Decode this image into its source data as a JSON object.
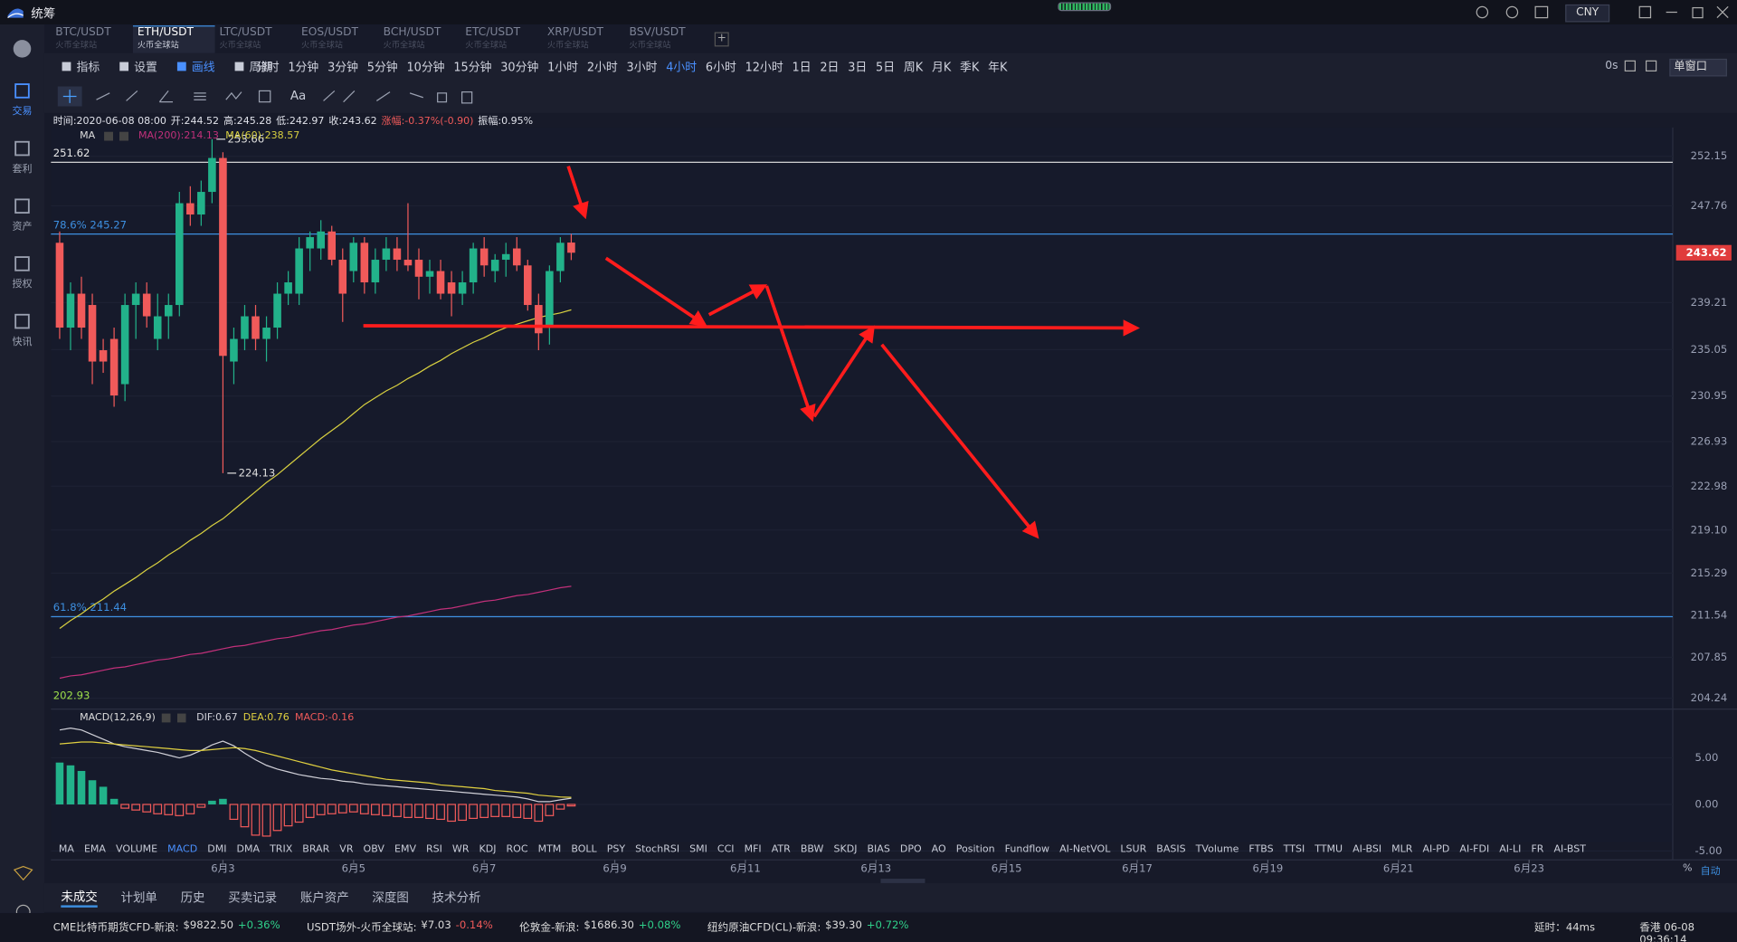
{
  "app": {
    "title": "统筹",
    "currency": "CNY"
  },
  "tabs": [
    {
      "pair": "BTC/USDT",
      "market": "火币全球站"
    },
    {
      "pair": "ETH/USDT",
      "market": "火币全球站",
      "active": true
    },
    {
      "pair": "LTC/USDT",
      "market": "火币全球站"
    },
    {
      "pair": "EOS/USDT",
      "market": "火币全球站"
    },
    {
      "pair": "BCH/USDT",
      "market": "火币全球站"
    },
    {
      "pair": "ETC/USDT",
      "market": "火币全球站"
    },
    {
      "pair": "XRP/USDT",
      "market": "火币全球站"
    },
    {
      "pair": "BSV/USDT",
      "market": "火币全球站"
    }
  ],
  "sidebar": [
    "交易",
    "套利",
    "资产",
    "授权",
    "快讯"
  ],
  "toolbar": {
    "indicator": "指标",
    "settings": "设置",
    "draw": "画线",
    "period": "周期",
    "timer": "0s",
    "window": "单窗口",
    "font": "Aa"
  },
  "periods": [
    {
      "label": "分时"
    },
    {
      "label": "1分钟"
    },
    {
      "label": "3分钟"
    },
    {
      "label": "5分钟"
    },
    {
      "label": "10分钟"
    },
    {
      "label": "15分钟"
    },
    {
      "label": "30分钟"
    },
    {
      "label": "1小时"
    },
    {
      "label": "2小时"
    },
    {
      "label": "3小时"
    },
    {
      "label": "4小时",
      "active": true
    },
    {
      "label": "6小时"
    },
    {
      "label": "12小时"
    },
    {
      "label": "1日"
    },
    {
      "label": "2日"
    },
    {
      "label": "3日"
    },
    {
      "label": "5日"
    },
    {
      "label": "周K"
    },
    {
      "label": "月K"
    },
    {
      "label": "季K"
    },
    {
      "label": "年K"
    }
  ],
  "info": [
    "时间:2020-06-08 08:00",
    "开:244.52",
    "高:245.28",
    "低:242.97",
    "收:243.62",
    "涨幅:-0.37%(-0.90)",
    "振幅:0.95%"
  ],
  "chart_data": {
    "type": "candlestick",
    "legend_title": "MA",
    "grid": true,
    "up_color": "#22b28a",
    "down_color": "#f05a5a",
    "xlim": [
      -0.8,
      148.2
    ],
    "xticks": [
      {
        "value": 15,
        "label": "6月3"
      },
      {
        "value": 27,
        "label": "6月5"
      },
      {
        "value": 39,
        "label": "6月7"
      },
      {
        "value": 51,
        "label": "6月9"
      },
      {
        "value": 63,
        "label": "6月11"
      },
      {
        "value": 75,
        "label": "6月13"
      },
      {
        "value": 87,
        "label": "6月15"
      },
      {
        "value": 99,
        "label": "6月17"
      },
      {
        "value": 111,
        "label": "6月19"
      },
      {
        "value": 123,
        "label": "6月21"
      },
      {
        "value": 135,
        "label": "6月23"
      }
    ],
    "ylim": [
      203.46,
      254.7
    ],
    "yticks": [
      252.15,
      247.76,
      239.21,
      235.05,
      230.95,
      226.93,
      222.98,
      {
        "value": 219.1,
        "label": "219.10"
      },
      215.29,
      211.54,
      207.85,
      204.24
    ],
    "ohlc": [
      [
        244.5,
        245.5,
        236,
        237
      ],
      [
        237,
        241,
        235,
        240
      ],
      [
        240,
        241.5,
        236,
        237
      ],
      [
        239,
        240,
        232,
        234
      ],
      [
        235,
        236,
        233,
        234
      ],
      [
        236,
        237,
        230,
        231
      ],
      [
        232,
        240,
        230.5,
        239
      ],
      [
        239,
        241,
        236,
        240
      ],
      [
        240,
        241,
        237,
        238
      ],
      [
        236,
        240,
        235,
        238
      ],
      [
        238,
        240,
        236,
        239
      ],
      [
        239,
        249,
        238,
        248
      ],
      [
        248,
        249.5,
        246,
        247
      ],
      [
        247,
        250,
        246,
        249
      ],
      [
        249,
        253.66,
        248,
        252
      ],
      [
        252,
        252.5,
        224.13,
        234.5
      ],
      [
        234,
        237,
        232,
        236
      ],
      [
        236,
        239,
        235,
        238
      ],
      [
        238,
        239,
        235,
        236
      ],
      [
        236,
        238,
        234,
        237
      ],
      [
        237,
        241,
        236,
        240
      ],
      [
        240,
        242,
        239,
        241
      ],
      [
        240,
        245,
        239,
        244
      ],
      [
        244,
        245.5,
        242,
        245
      ],
      [
        244,
        246.5,
        243,
        245.5
      ],
      [
        245.5,
        246,
        242.5,
        243
      ],
      [
        243,
        244,
        237.5,
        240
      ],
      [
        242,
        245,
        241,
        244.5
      ],
      [
        244.5,
        245,
        240,
        241
      ],
      [
        241,
        244,
        240,
        243
      ],
      [
        243,
        245,
        242,
        244
      ],
      [
        244,
        245,
        242,
        243
      ],
      [
        243,
        248,
        242,
        242.5
      ],
      [
        243,
        244,
        239.5,
        241.5
      ],
      [
        241.5,
        243,
        240,
        242
      ],
      [
        242,
        243,
        239.5,
        240
      ],
      [
        241,
        242,
        238,
        240
      ],
      [
        240,
        242,
        239,
        241
      ],
      [
        241,
        244.5,
        240,
        244
      ],
      [
        244,
        245,
        241.5,
        242.5
      ],
      [
        242,
        243.5,
        241,
        243
      ],
      [
        243,
        244.5,
        241.5,
        243.5
      ],
      [
        244,
        245,
        242,
        242.5
      ],
      [
        242.5,
        243,
        238.5,
        239
      ],
      [
        239,
        240,
        235,
        236.5
      ],
      [
        237,
        242.5,
        235.5,
        242
      ],
      [
        242,
        245,
        241,
        244.5
      ],
      [
        244.52,
        245.28,
        242.97,
        243.62
      ]
    ],
    "ma": [
      {
        "name": "MA(200):214.13",
        "color": "#c2307a",
        "values": [
          206.0,
          206.2,
          206.3,
          206.5,
          206.7,
          206.9,
          207.0,
          207.2,
          207.4,
          207.6,
          207.7,
          207.9,
          208.1,
          208.2,
          208.4,
          208.6,
          208.8,
          208.9,
          209.1,
          209.3,
          209.5,
          209.6,
          209.8,
          210.0,
          210.2,
          210.3,
          210.5,
          210.7,
          210.8,
          211.0,
          211.2,
          211.4,
          211.5,
          211.7,
          211.9,
          212.1,
          212.2,
          212.4,
          212.6,
          212.8,
          212.9,
          213.1,
          213.3,
          213.4,
          213.6,
          213.8,
          214.0,
          214.13
        ]
      },
      {
        "name": "MA(60):238.57",
        "color": "#d8d040",
        "values": [
          210.4,
          211.1,
          211.7,
          212.4,
          213.0,
          213.7,
          214.3,
          214.9,
          215.6,
          216.2,
          216.9,
          217.5,
          218.2,
          218.8,
          219.5,
          220.1,
          220.9,
          221.7,
          222.5,
          223.3,
          224.0,
          224.8,
          225.6,
          226.4,
          227.2,
          227.9,
          228.6,
          229.4,
          230.2,
          230.8,
          231.4,
          231.9,
          232.5,
          233.0,
          233.6,
          234.1,
          234.7,
          235.2,
          235.7,
          236.1,
          236.6,
          237.0,
          237.3,
          237.6,
          237.9,
          238.1,
          238.3,
          238.57
        ]
      }
    ],
    "levels": [
      {
        "value": 251.62,
        "label": "251.62",
        "color": "#e8e8e8"
      },
      {
        "value": 245.27,
        "label": "78.6% 245.27",
        "color": "#3d8fe0"
      },
      {
        "value": 211.44,
        "label": "61.8% 211.44",
        "color": "#3d8fe0"
      }
    ],
    "base_label": "202.93",
    "max": {
      "value": 253.66,
      "label": "253.66"
    },
    "min": {
      "value": 224.13,
      "label": "224.13"
    },
    "last": {
      "value": 243.62,
      "label": "243.62"
    },
    "macd": {
      "title": "MACD(12,26,9)",
      "ylim": [
        -5.24,
        9.05
      ],
      "yticks": [
        {
          "value": 5,
          "label": "5.00"
        },
        {
          "value": 0,
          "label": "0.00"
        },
        {
          "value": -5,
          "label": "-5.00"
        }
      ],
      "lines": [
        {
          "name": "DIF:0.67",
          "color": "#d0d0d8",
          "values": [
            8.0,
            8.2,
            8.0,
            7.5,
            7.0,
            6.5,
            6.2,
            6.0,
            5.8,
            5.6,
            5.3,
            5.0,
            5.3,
            5.8,
            6.4,
            6.8,
            6.3,
            5.5,
            4.8,
            4.2,
            3.8,
            3.5,
            3.2,
            3.0,
            2.8,
            2.7,
            2.5,
            2.4,
            2.2,
            2.1,
            2.0,
            1.9,
            1.8,
            1.7,
            1.6,
            1.5,
            1.4,
            1.3,
            1.2,
            1.1,
            1.0,
            0.9,
            0.8,
            0.6,
            0.3,
            0.3,
            0.5,
            0.67
          ]
        },
        {
          "name": "DEA:0.76",
          "color": "#e0d040",
          "values": [
            6.5,
            6.6,
            6.7,
            6.7,
            6.6,
            6.5,
            6.4,
            6.3,
            6.2,
            6.1,
            6.0,
            5.9,
            5.8,
            5.8,
            5.9,
            6.0,
            6.1,
            6.0,
            5.8,
            5.5,
            5.2,
            4.9,
            4.6,
            4.3,
            4.0,
            3.7,
            3.5,
            3.3,
            3.1,
            2.9,
            2.7,
            2.6,
            2.5,
            2.4,
            2.3,
            2.1,
            2.0,
            1.9,
            1.8,
            1.7,
            1.5,
            1.4,
            1.3,
            1.2,
            1.0,
            0.9,
            0.8,
            0.76
          ]
        }
      ],
      "hist": {
        "name": "MACD:-0.16",
        "color": "#f05a5a",
        "values": [
          4.5,
          4.2,
          3.6,
          2.6,
          1.9,
          0.6,
          -0.4,
          -0.6,
          -0.8,
          -1.0,
          -1.1,
          -1.2,
          -1.0,
          -0.3,
          0.4,
          0.6,
          -1.6,
          -2.4,
          -3.3,
          -3.4,
          -2.8,
          -2.3,
          -1.9,
          -1.4,
          -1.1,
          -1.0,
          -0.9,
          -0.8,
          -1.0,
          -1.1,
          -1.2,
          -1.3,
          -1.4,
          -1.4,
          -1.5,
          -1.6,
          -1.8,
          -1.7,
          -1.5,
          -1.4,
          -1.3,
          -1.3,
          -1.4,
          -1.5,
          -1.8,
          -1.2,
          -0.5,
          -0.16
        ]
      }
    }
  },
  "indicators": [
    {
      "label": "MA"
    },
    {
      "label": "EMA"
    },
    {
      "label": "VOLUME"
    },
    {
      "label": "MACD",
      "active": true
    },
    {
      "label": "DMI"
    },
    {
      "label": "DMA"
    },
    {
      "label": "TRIX"
    },
    {
      "label": "BRAR"
    },
    {
      "label": "VR"
    },
    {
      "label": "OBV"
    },
    {
      "label": "EMV"
    },
    {
      "label": "RSI"
    },
    {
      "label": "WR"
    },
    {
      "label": "KDJ"
    },
    {
      "label": "ROC"
    },
    {
      "label": "MTM"
    },
    {
      "label": "BOLL"
    },
    {
      "label": "PSY"
    },
    {
      "label": "StochRSI"
    },
    {
      "label": "SMI"
    },
    {
      "label": "CCI"
    },
    {
      "label": "MFI"
    },
    {
      "label": "ATR"
    },
    {
      "label": "BBW"
    },
    {
      "label": "SKDJ"
    },
    {
      "label": "BIAS"
    },
    {
      "label": "DPO"
    },
    {
      "label": "AO"
    },
    {
      "label": "Position"
    },
    {
      "label": "Fundflow"
    },
    {
      "label": "AI-NetVOL"
    },
    {
      "label": "LSUR"
    },
    {
      "label": "BASIS"
    },
    {
      "label": "TVolume"
    },
    {
      "label": "FTBS"
    },
    {
      "label": "TTSI"
    },
    {
      "label": "TTMU"
    },
    {
      "label": "AI-BSI"
    },
    {
      "label": "MLR"
    },
    {
      "label": "AI-PD"
    },
    {
      "label": "AI-FDI"
    },
    {
      "label": "AI-LI"
    },
    {
      "label": "FR"
    },
    {
      "label": "AI-BST"
    }
  ],
  "axis_controls": {
    "percent": "%",
    "auto": "自动"
  },
  "bottom_tabs": [
    {
      "label": "未成交",
      "active": true
    },
    {
      "label": "计划单"
    },
    {
      "label": "历史"
    },
    {
      "label": "买卖记录"
    },
    {
      "label": "账户资产"
    },
    {
      "label": "深度图"
    },
    {
      "label": "技术分析"
    }
  ],
  "ticker": [
    {
      "name": "CME比特币期货CFD-新浪:",
      "price": "$9822.50",
      "change": "+0.36%"
    },
    {
      "name": "USDT场外-火币全球站:",
      "price": "¥7.03",
      "change": "-0.14%"
    },
    {
      "name": "伦敦金-新浪:",
      "price": "$1686.30",
      "change": "+0.08%"
    },
    {
      "name": "纽约原油CFD(CL)-新浪:",
      "price": "$39.30",
      "change": "+0.72%"
    }
  ],
  "status": {
    "latency": "延时：44ms",
    "clock": "香港 06-08 09:36:14"
  }
}
